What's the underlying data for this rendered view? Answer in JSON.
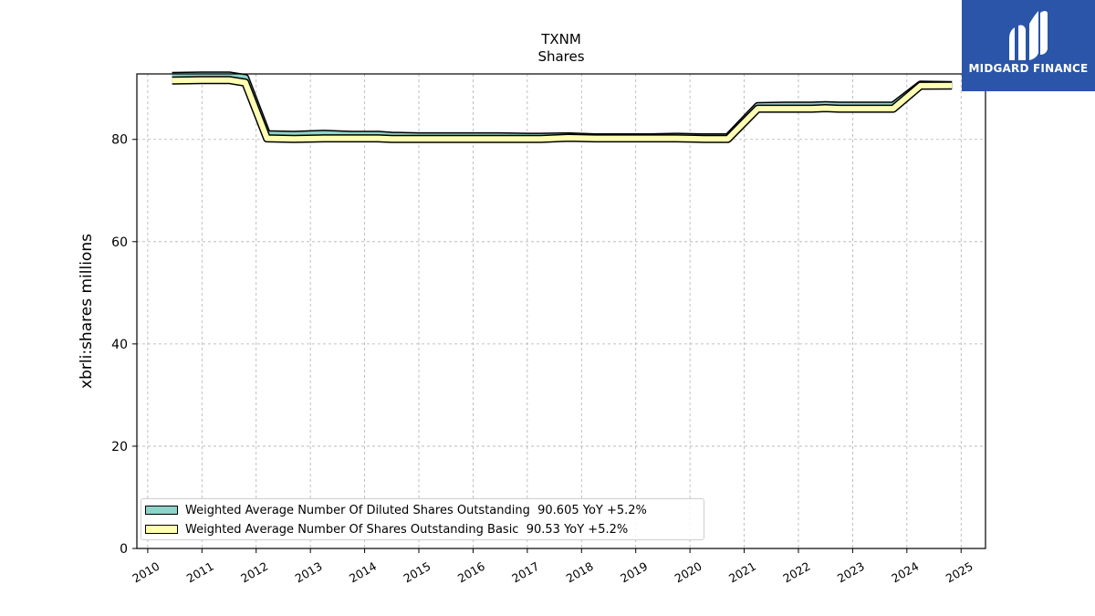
{
  "logo": {
    "text": "MIDGARD FINANCE",
    "color": "#2a55a8"
  },
  "chart_data": {
    "type": "line",
    "title": "TXNM",
    "subtitle": "Shares",
    "xlabel": "",
    "ylabel": "xbrli:shares millions",
    "xlim": [
      2009.8,
      2025.45
    ],
    "ylim": [
      0,
      92.8
    ],
    "grid": true,
    "x_ticks": [
      "2010",
      "2011",
      "2012",
      "2013",
      "2014",
      "2015",
      "2016",
      "2017",
      "2018",
      "2019",
      "2020",
      "2021",
      "2022",
      "2023",
      "2024",
      "2025"
    ],
    "y_ticks": [
      0,
      20,
      40,
      60,
      80
    ],
    "legend_position": "lower-left",
    "series": [
      {
        "name": "Weighted Average Number Of Diluted Shares Outstanding",
        "legend_label": "Weighted Average Number Of Diluted Shares Outstanding  90.605 YoY +5.2%",
        "color": "#8dd3c7",
        "x": [
          2010.45,
          2011.0,
          2011.5,
          2011.8,
          2012.2,
          2012.7,
          2013.25,
          2013.75,
          2014.25,
          2014.5,
          2015.0,
          2015.5,
          2016.0,
          2016.5,
          2017.0,
          2017.25,
          2017.75,
          2018.25,
          2018.75,
          2019.25,
          2019.75,
          2020.25,
          2020.7,
          2021.25,
          2021.75,
          2022.25,
          2022.5,
          2022.75,
          2023.25,
          2023.75,
          2024.25,
          2024.83
        ],
        "y": [
          92.4,
          92.5,
          92.5,
          92.0,
          81.0,
          80.9,
          81.1,
          80.9,
          80.9,
          80.7,
          80.6,
          80.6,
          80.6,
          80.6,
          80.5,
          80.5,
          80.6,
          80.4,
          80.4,
          80.4,
          80.5,
          80.4,
          80.4,
          86.5,
          86.6,
          86.6,
          86.7,
          86.6,
          86.6,
          86.6,
          90.7,
          90.605
        ]
      },
      {
        "name": "Weighted Average Number Of Shares Outstanding Basic",
        "legend_label": "Weighted Average Number Of Shares Outstanding Basic  90.53 YoY +5.2%",
        "color": "#ffffb3",
        "x": [
          2010.45,
          2011.0,
          2011.5,
          2011.8,
          2012.2,
          2012.7,
          2013.25,
          2013.75,
          2014.25,
          2014.5,
          2015.0,
          2015.5,
          2016.0,
          2016.5,
          2017.0,
          2017.25,
          2017.75,
          2018.25,
          2018.75,
          2019.25,
          2019.75,
          2020.25,
          2020.7,
          2021.25,
          2021.75,
          2022.25,
          2022.5,
          2022.75,
          2023.25,
          2023.75,
          2024.25,
          2024.83
        ],
        "y": [
          91.5,
          91.6,
          91.6,
          91.1,
          80.2,
          80.1,
          80.2,
          80.2,
          80.2,
          80.1,
          80.1,
          80.1,
          80.1,
          80.1,
          80.1,
          80.1,
          80.3,
          80.2,
          80.2,
          80.2,
          80.2,
          80.1,
          80.1,
          86.0,
          86.0,
          86.0,
          86.1,
          86.0,
          86.0,
          86.0,
          90.5,
          90.53
        ]
      }
    ]
  }
}
